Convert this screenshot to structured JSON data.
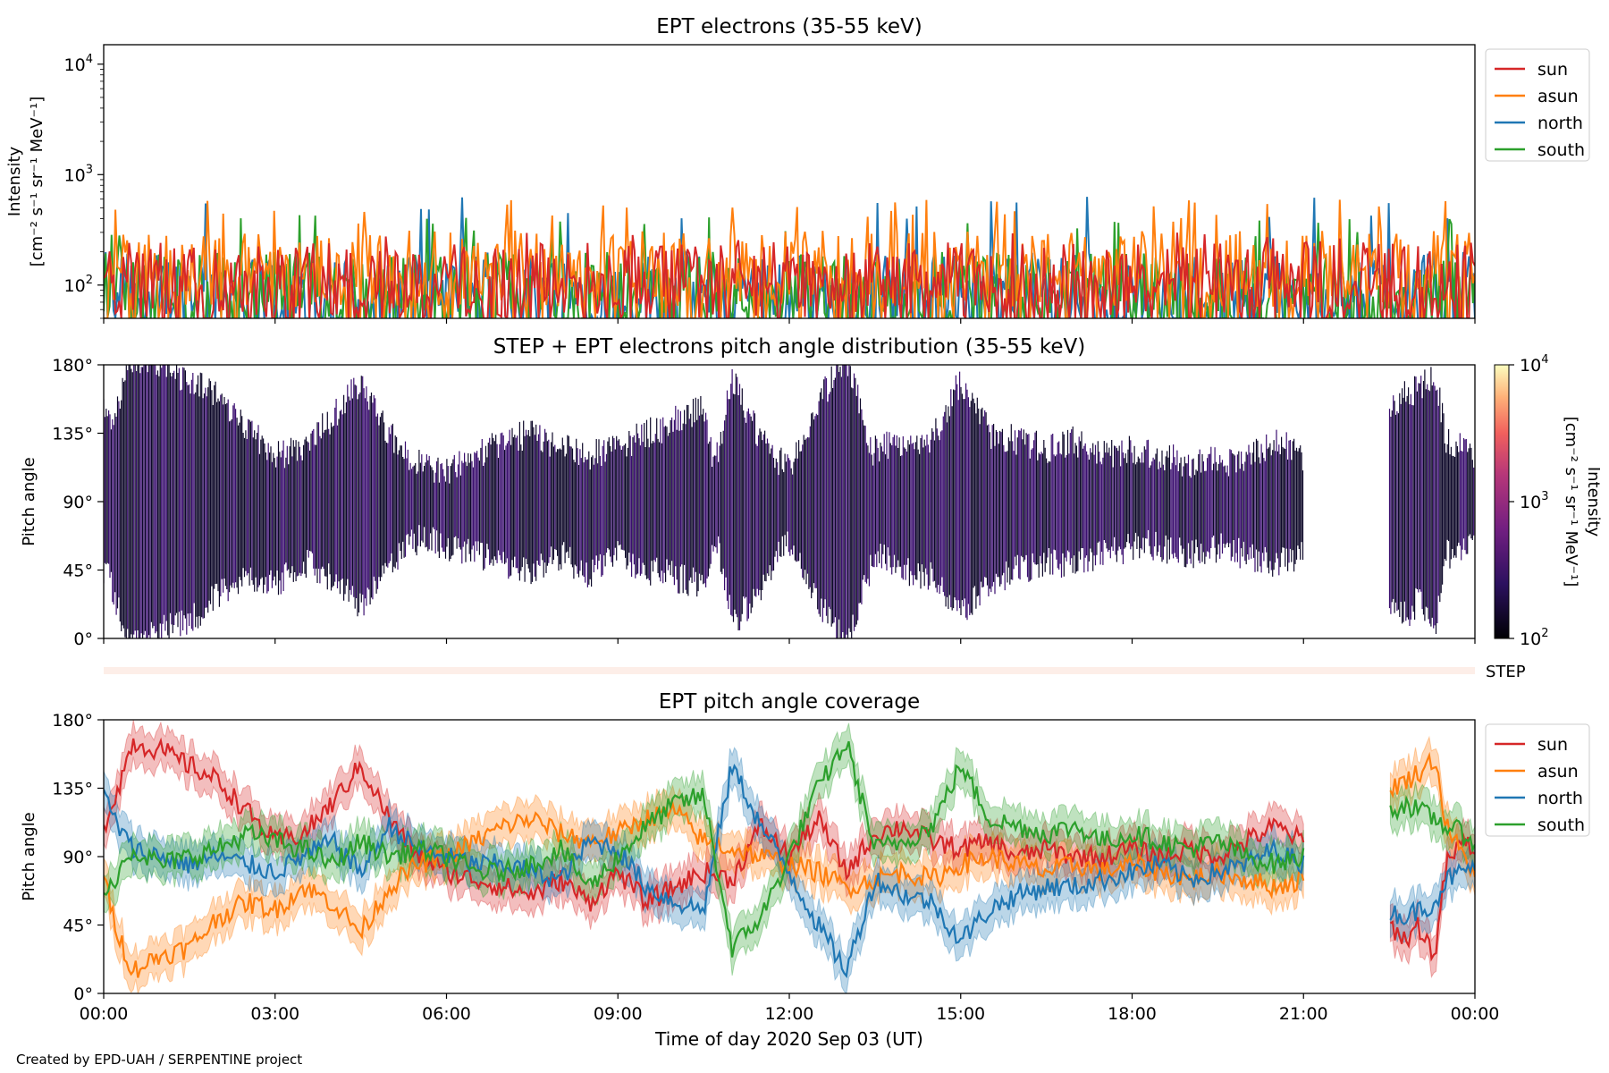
{
  "figure": {
    "credit": "Created by EPD-UAH / SERPENTINE project",
    "xlabel": "Time of day 2020 Sep 03 (UT)",
    "xticks": [
      "00:00",
      "03:00",
      "06:00",
      "09:00",
      "12:00",
      "15:00",
      "18:00",
      "21:00",
      "00:00"
    ]
  },
  "colors": {
    "sun": "#d62728",
    "asun": "#ff7f0e",
    "north": "#1f77b4",
    "south": "#2ca02c",
    "heatmap_dark": "#0d0829",
    "heatmap_mid": "#3b0f70"
  },
  "chart_data": [
    {
      "type": "line",
      "title": "EPT electrons (35-55 keV)",
      "ylabel": [
        "Intensity",
        "[cm⁻² s⁻¹ sr⁻¹ MeV⁻¹]"
      ],
      "yscale": "log",
      "ylim": [
        50,
        15000
      ],
      "yticks": [
        {
          "v": 100,
          "base": "10",
          "exp": "2"
        },
        {
          "v": 1000,
          "base": "10",
          "exp": "3"
        },
        {
          "v": 10000,
          "base": "10",
          "exp": "4"
        }
      ],
      "xlim_hours": [
        0,
        24
      ],
      "legend_position": "outside-right",
      "series": [
        {
          "name": "sun",
          "color": "#d62728",
          "median": 110,
          "peak": 300
        },
        {
          "name": "asun",
          "color": "#ff7f0e",
          "median": 140,
          "peak": 600
        },
        {
          "name": "north",
          "color": "#1f77b4",
          "median": 90,
          "peak": 650
        },
        {
          "name": "south",
          "color": "#2ca02c",
          "median": 90,
          "peak": 450
        }
      ],
      "legend": [
        "sun",
        "asun",
        "north",
        "south"
      ]
    },
    {
      "type": "heatmap",
      "title": "STEP + EPT electrons pitch angle distribution (35-55 keV)",
      "ylabel": "Pitch angle",
      "ylim_deg": [
        0,
        180
      ],
      "yticks": [
        "0°",
        "45°",
        "90°",
        "135°",
        "180°"
      ],
      "data_gap_hours": [
        21.0,
        22.5
      ],
      "colorbar": {
        "label": [
          "Intensity",
          "[cm⁻² s⁻¹ sr⁻¹ MeV⁻¹]"
        ],
        "scale": "log",
        "range": [
          100,
          10000
        ],
        "ticks": [
          {
            "base": "10",
            "exp": "2"
          },
          {
            "base": "10",
            "exp": "3"
          },
          {
            "base": "10",
            "exp": "4"
          }
        ]
      }
    },
    {
      "type": "bar",
      "label": "STEP",
      "description_value": "STEP strip (no visible data)"
    },
    {
      "type": "line",
      "title": "EPT pitch angle coverage",
      "ylabel": "Pitch angle",
      "ylim_deg": [
        0,
        180
      ],
      "yticks": [
        "0°",
        "45°",
        "90°",
        "135°",
        "180°"
      ],
      "data_gap_hours": [
        21.0,
        22.5
      ],
      "legend_position": "outside-right",
      "legend": [
        "sun",
        "asun",
        "north",
        "south"
      ],
      "series": [
        {
          "name": "sun",
          "color": "#d62728",
          "points": [
            [
              0,
              110
            ],
            [
              0.25,
              135
            ],
            [
              0.5,
              165
            ],
            [
              1,
              160
            ],
            [
              1.5,
              150
            ],
            [
              2,
              140
            ],
            [
              2.5,
              120
            ],
            [
              3,
              100
            ],
            [
              3.5,
              105
            ],
            [
              4,
              125
            ],
            [
              4.5,
              150
            ],
            [
              5,
              115
            ],
            [
              5.5,
              90
            ],
            [
              6,
              80
            ],
            [
              6.5,
              75
            ],
            [
              7,
              70
            ],
            [
              7.5,
              65
            ],
            [
              8,
              75
            ],
            [
              8.5,
              60
            ],
            [
              9,
              80
            ],
            [
              9.5,
              60
            ],
            [
              10,
              70
            ],
            [
              10.5,
              80
            ],
            [
              11,
              75
            ],
            [
              11.5,
              110
            ],
            [
              12,
              90
            ],
            [
              12.5,
              115
            ],
            [
              13,
              80
            ],
            [
              13.5,
              105
            ],
            [
              14,
              110
            ],
            [
              14.5,
              100
            ],
            [
              15,
              95
            ],
            [
              15.5,
              100
            ],
            [
              16,
              90
            ],
            [
              16.5,
              95
            ],
            [
              17,
              90
            ],
            [
              17.5,
              90
            ],
            [
              18,
              95
            ],
            [
              18.5,
              90
            ],
            [
              19,
              95
            ],
            [
              19.5,
              90
            ],
            [
              20,
              100
            ],
            [
              20.5,
              110
            ],
            [
              21,
              100
            ],
            [
              22.5,
              45
            ],
            [
              22.8,
              35
            ],
            [
              23,
              45
            ],
            [
              23.3,
              25
            ],
            [
              23.5,
              85
            ],
            [
              23.8,
              100
            ],
            [
              24,
              95
            ]
          ]
        },
        {
          "name": "asun",
          "color": "#ff7f0e",
          "points": [
            [
              0,
              75
            ],
            [
              0.25,
              40
            ],
            [
              0.5,
              15
            ],
            [
              1,
              25
            ],
            [
              1.5,
              30
            ],
            [
              2,
              50
            ],
            [
              2.5,
              60
            ],
            [
              3,
              55
            ],
            [
              3.5,
              70
            ],
            [
              4,
              60
            ],
            [
              4.5,
              40
            ],
            [
              5,
              70
            ],
            [
              5.5,
              85
            ],
            [
              6,
              90
            ],
            [
              6.5,
              100
            ],
            [
              7,
              110
            ],
            [
              7.5,
              115
            ],
            [
              8,
              105
            ],
            [
              8.5,
              100
            ],
            [
              9,
              105
            ],
            [
              9.5,
              115
            ],
            [
              10,
              120
            ],
            [
              10.5,
              100
            ],
            [
              11,
              95
            ],
            [
              11.5,
              90
            ],
            [
              12,
              85
            ],
            [
              12.5,
              80
            ],
            [
              13,
              70
            ],
            [
              13.5,
              75
            ],
            [
              14,
              80
            ],
            [
              14.5,
              75
            ],
            [
              15,
              85
            ],
            [
              15.5,
              90
            ],
            [
              16,
              85
            ],
            [
              16.5,
              80
            ],
            [
              17,
              85
            ],
            [
              17.5,
              80
            ],
            [
              18,
              85
            ],
            [
              18.5,
              80
            ],
            [
              19,
              75
            ],
            [
              19.5,
              80
            ],
            [
              20,
              75
            ],
            [
              20.5,
              70
            ],
            [
              21,
              75
            ],
            [
              22.5,
              135
            ],
            [
              22.8,
              140
            ],
            [
              23,
              145
            ],
            [
              23.3,
              155
            ],
            [
              23.5,
              110
            ],
            [
              23.8,
              90
            ],
            [
              24,
              80
            ]
          ]
        },
        {
          "name": "north",
          "color": "#1f77b4",
          "points": [
            [
              0,
              130
            ],
            [
              0.25,
              110
            ],
            [
              0.5,
              95
            ],
            [
              1,
              90
            ],
            [
              1.5,
              85
            ],
            [
              2,
              90
            ],
            [
              2.5,
              85
            ],
            [
              3,
              80
            ],
            [
              3.5,
              90
            ],
            [
              4,
              100
            ],
            [
              4.5,
              80
            ],
            [
              5,
              110
            ],
            [
              5.5,
              95
            ],
            [
              6,
              90
            ],
            [
              6.5,
              85
            ],
            [
              7,
              85
            ],
            [
              7.5,
              80
            ],
            [
              8,
              75
            ],
            [
              8.5,
              100
            ],
            [
              9,
              95
            ],
            [
              9.5,
              70
            ],
            [
              10,
              60
            ],
            [
              10.5,
              55
            ],
            [
              11,
              150
            ],
            [
              11.5,
              110
            ],
            [
              12,
              80
            ],
            [
              12.5,
              45
            ],
            [
              13,
              15
            ],
            [
              13.5,
              75
            ],
            [
              14,
              65
            ],
            [
              14.5,
              60
            ],
            [
              15,
              35
            ],
            [
              15.5,
              55
            ],
            [
              16,
              65
            ],
            [
              16.5,
              70
            ],
            [
              17,
              70
            ],
            [
              17.5,
              75
            ],
            [
              18,
              80
            ],
            [
              18.5,
              85
            ],
            [
              19,
              75
            ],
            [
              19.5,
              80
            ],
            [
              20,
              85
            ],
            [
              20.5,
              95
            ],
            [
              21,
              85
            ],
            [
              22.5,
              55
            ],
            [
              22.8,
              50
            ],
            [
              23,
              55
            ],
            [
              23.3,
              60
            ],
            [
              23.5,
              75
            ],
            [
              23.8,
              80
            ],
            [
              24,
              85
            ]
          ]
        },
        {
          "name": "south",
          "color": "#2ca02c",
          "points": [
            [
              0,
              60
            ],
            [
              0.25,
              80
            ],
            [
              0.5,
              95
            ],
            [
              1,
              85
            ],
            [
              1.5,
              90
            ],
            [
              2,
              95
            ],
            [
              2.5,
              105
            ],
            [
              3,
              100
            ],
            [
              3.5,
              95
            ],
            [
              4,
              85
            ],
            [
              4.5,
              100
            ],
            [
              5,
              90
            ],
            [
              5.5,
              95
            ],
            [
              6,
              90
            ],
            [
              6.5,
              80
            ],
            [
              7,
              80
            ],
            [
              7.5,
              85
            ],
            [
              8,
              95
            ],
            [
              8.5,
              70
            ],
            [
              9,
              90
            ],
            [
              9.5,
              110
            ],
            [
              10,
              125
            ],
            [
              10.5,
              130
            ],
            [
              11,
              30
            ],
            [
              11.5,
              50
            ],
            [
              12,
              90
            ],
            [
              12.5,
              135
            ],
            [
              13,
              165
            ],
            [
              13.5,
              95
            ],
            [
              14,
              100
            ],
            [
              14.5,
              110
            ],
            [
              15,
              150
            ],
            [
              15.5,
              115
            ],
            [
              16,
              110
            ],
            [
              16.5,
              105
            ],
            [
              17,
              110
            ],
            [
              17.5,
              100
            ],
            [
              18,
              105
            ],
            [
              18.5,
              100
            ],
            [
              19,
              95
            ],
            [
              19.5,
              100
            ],
            [
              20,
              90
            ],
            [
              20.5,
              85
            ],
            [
              21,
              90
            ],
            [
              22.5,
              120
            ],
            [
              22.8,
              125
            ],
            [
              23,
              120
            ],
            [
              23.3,
              115
            ],
            [
              23.5,
              110
            ],
            [
              23.8,
              105
            ],
            [
              24,
              100
            ]
          ]
        }
      ]
    }
  ]
}
